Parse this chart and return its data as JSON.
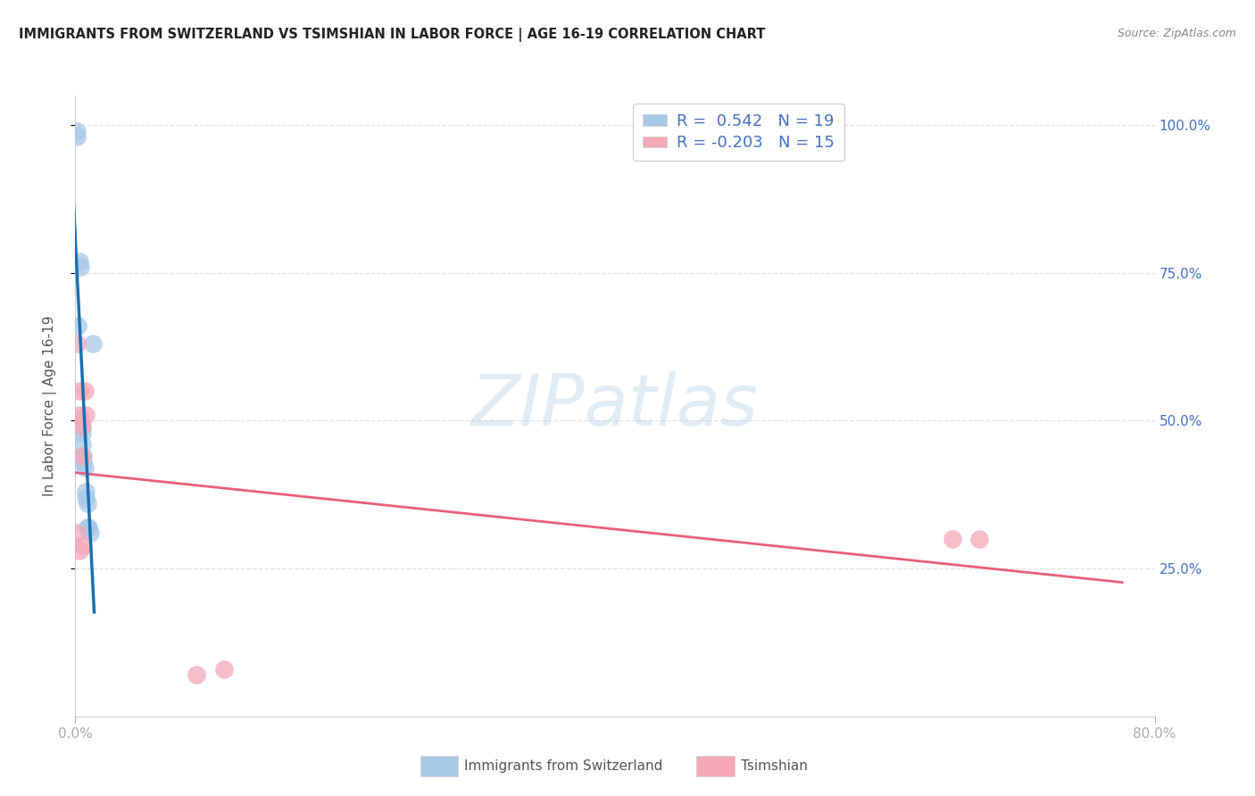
{
  "title": "IMMIGRANTS FROM SWITZERLAND VS TSIMSHIAN IN LABOR FORCE | AGE 16-19 CORRELATION CHART",
  "source": "Source: ZipAtlas.com",
  "ylabel": "In Labor Force | Age 16-19",
  "legend_label1": "Immigrants from Switzerland",
  "legend_label2": "Tsimshian",
  "r1": "0.542",
  "n1": "19",
  "r2": "-0.203",
  "n2": "15",
  "color_blue": "#a8c8e8",
  "color_pink": "#f4a8b8",
  "line_blue": "#1a6faf",
  "line_pink": "#e8607a",
  "switzerland_x": [
    0.001,
    0.001,
    0.002,
    0.003,
    0.004,
    0.004,
    0.005,
    0.005,
    0.005,
    0.006,
    0.006,
    0.007,
    0.008,
    0.008,
    0.009,
    0.009,
    0.01,
    0.011,
    0.013
  ],
  "switzerland_y": [
    0.99,
    0.98,
    0.66,
    0.77,
    0.76,
    0.49,
    0.49,
    0.48,
    0.46,
    0.44,
    0.43,
    0.42,
    0.38,
    0.37,
    0.36,
    0.32,
    0.32,
    0.31,
    0.63
  ],
  "tsimshian_x": [
    0.001,
    0.001,
    0.003,
    0.003,
    0.004,
    0.005,
    0.005,
    0.006,
    0.007,
    0.008,
    0.09,
    0.11,
    0.65,
    0.67,
    0.003
  ],
  "tsimshian_y": [
    0.63,
    0.31,
    0.55,
    0.51,
    0.5,
    0.49,
    0.44,
    0.29,
    0.55,
    0.51,
    0.07,
    0.08,
    0.3,
    0.3,
    0.28
  ],
  "xmin": 0.0,
  "xmax": 0.8,
  "ymin": 0.0,
  "ymax": 1.05,
  "yticks": [
    0.25,
    0.5,
    0.75,
    1.0
  ],
  "xticks": [
    0.0,
    0.8
  ],
  "right_ytick_color": "#4472c4",
  "text_color": "#555555",
  "grid_color": "#dddddd",
  "title_color": "#222222",
  "source_color": "#888888"
}
